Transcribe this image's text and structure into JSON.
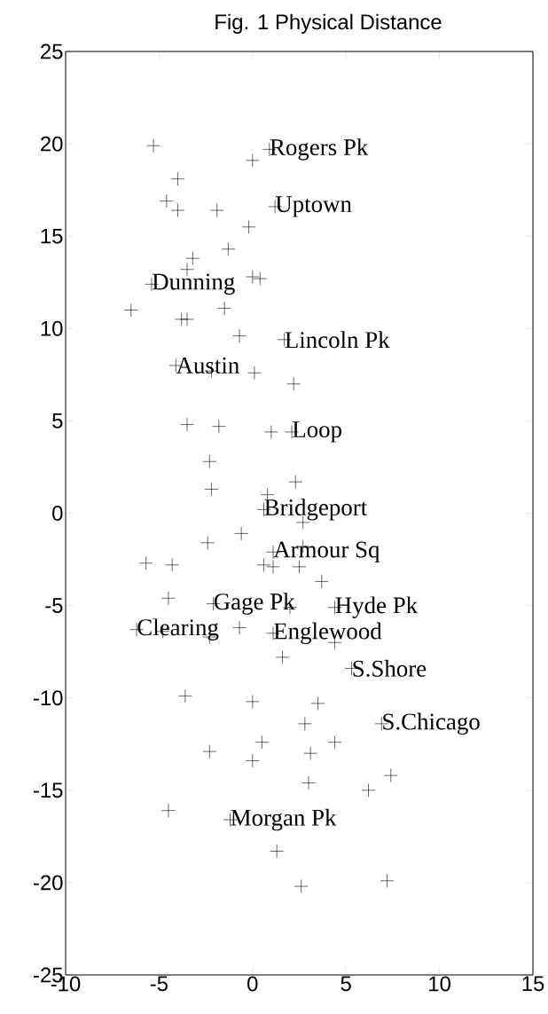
{
  "chart_data": {
    "type": "scatter",
    "title": "Fig. 1 Physical Distance",
    "x": [
      -5.3,
      0.9,
      0.0,
      -4.0,
      -4.6,
      -4.0,
      -1.9,
      1.2,
      -0.2,
      -1.3,
      -3.2,
      -3.5,
      -5.4,
      0.0,
      0.4,
      -6.5,
      -3.8,
      -3.5,
      -1.5,
      -0.7,
      1.7,
      -4.1,
      -2.2,
      0.1,
      2.2,
      -3.5,
      -1.8,
      1.0,
      2.1,
      -2.3,
      2.3,
      -2.2,
      0.8,
      0.6,
      2.7,
      -0.6,
      -2.4,
      1.1,
      2.7,
      -5.7,
      -4.3,
      0.6,
      1.1,
      2.5,
      3.7,
      -4.5,
      -2.1,
      2.0,
      4.4,
      -6.2,
      -4.8,
      -2.3,
      -0.7,
      1.1,
      4.4,
      1.6,
      5.3,
      -3.6,
      0.0,
      3.5,
      2.8,
      6.9,
      0.5,
      4.4,
      -2.3,
      0.0,
      3.1,
      7.4,
      3.0,
      6.2,
      -4.5,
      -1.2,
      1.3,
      2.6,
      7.2
    ],
    "values": [
      19.9,
      19.7,
      19.1,
      18.1,
      16.9,
      16.4,
      16.4,
      16.6,
      15.5,
      14.3,
      13.8,
      13.2,
      12.4,
      12.8,
      12.7,
      11.0,
      10.5,
      10.5,
      11.1,
      9.6,
      9.4,
      8.0,
      7.7,
      7.6,
      7.0,
      4.8,
      4.7,
      4.4,
      4.4,
      2.8,
      1.7,
      1.3,
      1.0,
      0.2,
      -0.5,
      -1.1,
      -1.6,
      -2.1,
      -1.8,
      -2.7,
      -2.8,
      -2.8,
      -2.9,
      -2.9,
      -3.7,
      -4.6,
      -4.9,
      -5.1,
      -5.1,
      -6.3,
      -6.4,
      -6.7,
      -6.2,
      -6.5,
      -7.0,
      -7.8,
      -8.4,
      -9.9,
      -10.2,
      -10.3,
      -11.4,
      -11.4,
      -12.4,
      -12.4,
      -12.9,
      -13.4,
      -13.0,
      -14.2,
      -14.6,
      -15.0,
      -16.1,
      -16.6,
      -18.3,
      -20.2,
      -19.9
    ],
    "color": "#000000",
    "marker": "cross",
    "xlim": [
      -10,
      15
    ],
    "ylim": [
      -25,
      25
    ],
    "xticks": [
      -10,
      -5,
      0,
      5,
      10,
      15
    ],
    "yticks": [
      -25,
      -20,
      -15,
      -10,
      -5,
      0,
      5,
      10,
      15,
      20,
      25
    ],
    "annotations": [
      {
        "text": "Rogers Pk",
        "x": 0.9,
        "y": 19.7
      },
      {
        "text": "Uptown",
        "x": 1.2,
        "y": 16.6
      },
      {
        "text": "Dunning",
        "x": -5.4,
        "y": 12.4
      },
      {
        "text": "Lincoln Pk",
        "x": 1.7,
        "y": 9.4
      },
      {
        "text": "Austin",
        "x": -4.1,
        "y": 8.0
      },
      {
        "text": "Loop",
        "x": 2.1,
        "y": 4.4
      },
      {
        "text": "Bridgeport",
        "x": 0.6,
        "y": 0.2
      },
      {
        "text": "Armour Sq",
        "x": 1.1,
        "y": -2.1
      },
      {
        "text": "Gage Pk",
        "x": -2.1,
        "y": -4.9
      },
      {
        "text": "Hyde Pk",
        "x": 4.4,
        "y": -5.1
      },
      {
        "text": "Clearing",
        "x": -6.2,
        "y": -6.3
      },
      {
        "text": "Englewood",
        "x": 1.1,
        "y": -6.5
      },
      {
        "text": "S.Shore",
        "x": 5.3,
        "y": -8.4
      },
      {
        "text": "S.Chicago",
        "x": 6.9,
        "y": -11.4
      },
      {
        "text": "Morgan Pk",
        "x": -1.2,
        "y": -16.6
      }
    ]
  }
}
